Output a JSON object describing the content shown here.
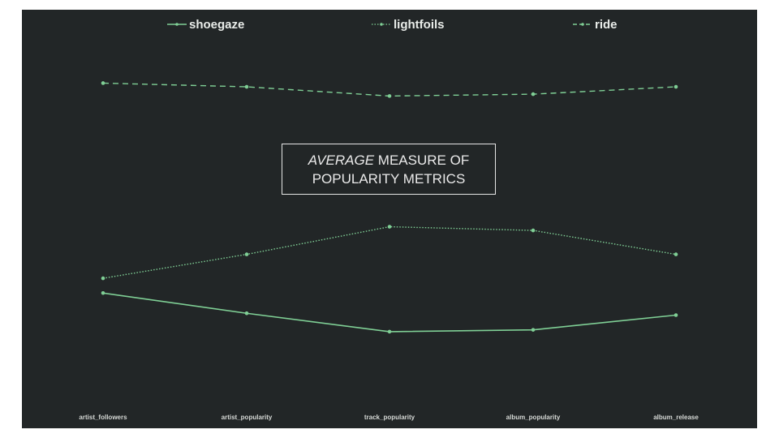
{
  "chart_data": {
    "type": "line",
    "title_italic": "AVERAGE",
    "title_rest_line1": "MEASURE OF",
    "title_line2": "POPULARITY METRICS",
    "categories": [
      "artist_followers",
      "artist_popularity",
      "track_popularity",
      "album_popularity",
      "album_release"
    ],
    "ylim": [
      0,
      100
    ],
    "grid": false,
    "legend_position": "top",
    "series_color": "#7fcf95",
    "series": [
      {
        "name": "shoegaze",
        "style": "solid",
        "values": [
          31,
          25.5,
          20.5,
          21,
          25
        ]
      },
      {
        "name": "lightfoils",
        "style": "dotted",
        "values": [
          35,
          41.5,
          49,
          48,
          41.5
        ]
      },
      {
        "name": "ride",
        "style": "dashed",
        "values": [
          88,
          87,
          84.5,
          85,
          87
        ]
      }
    ]
  }
}
